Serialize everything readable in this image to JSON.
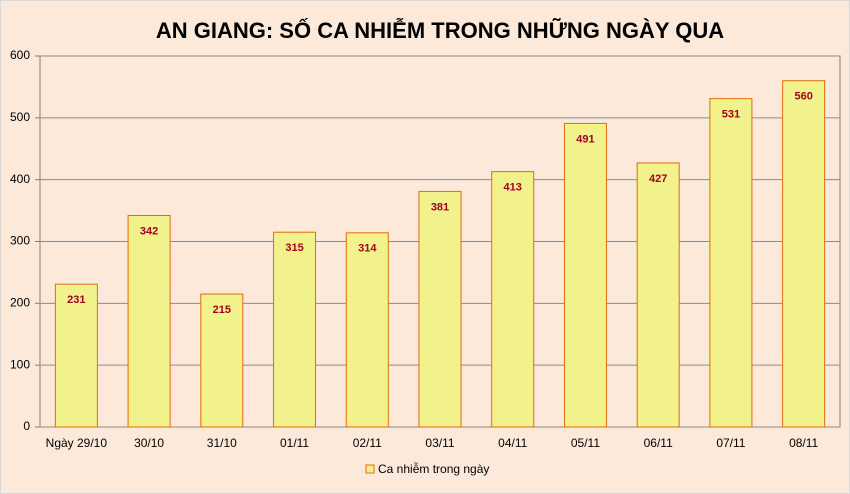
{
  "chart_data": {
    "type": "bar",
    "title": "AN GIANG: SỐ CA NHIỄM TRONG NHỮNG NGÀY QUA",
    "categories": [
      "Ngày 29/10",
      "30/10",
      "31/10",
      "01/11",
      "02/11",
      "03/11",
      "04/11",
      "05/11",
      "06/11",
      "07/11",
      "08/11"
    ],
    "series": [
      {
        "name": "Ca nhiễm trong ngày",
        "color": "#f2f28c",
        "values": [
          231,
          342,
          215,
          315,
          314,
          381,
          413,
          491,
          427,
          531,
          560
        ]
      }
    ],
    "ylim": [
      0,
      600
    ],
    "yticks": [
      0,
      100,
      200,
      300,
      400,
      500,
      600
    ],
    "grid": true,
    "legend": "bottom"
  }
}
